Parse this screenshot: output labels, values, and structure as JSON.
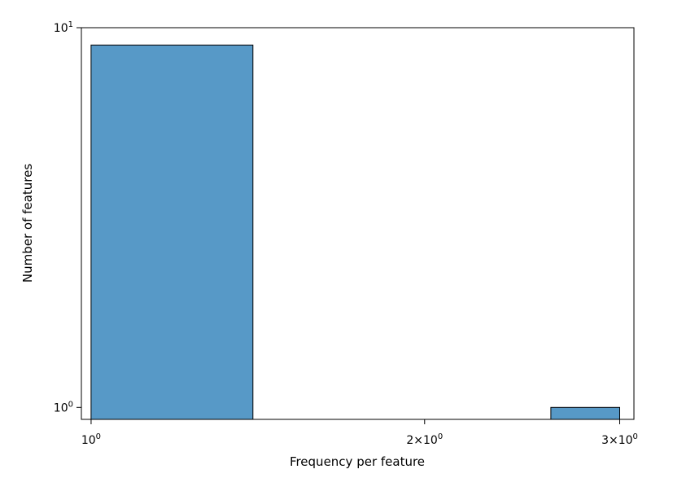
{
  "chart_data": {
    "type": "bar",
    "title": "",
    "xlabel": "Frequency per feature",
    "ylabel": "Number of features",
    "x_scale": "log",
    "y_scale": "log",
    "xlim": [
      0.98,
      3.09
    ],
    "ylim": [
      0.93,
      10
    ],
    "grid": false,
    "bars": [
      {
        "x_start": 1.0,
        "x_end": 1.4,
        "value": 9
      },
      {
        "x_start": 2.6,
        "x_end": 3.0,
        "value": 1
      }
    ],
    "bar_color": "#5799c7",
    "bar_edge_color": "#000000",
    "x_ticks": [
      {
        "value": 1,
        "base": "10",
        "exp": "0"
      },
      {
        "value": 2,
        "base": "2×10",
        "exp": "0"
      },
      {
        "value": 3,
        "base": "3×10",
        "exp": "0"
      }
    ],
    "y_ticks": [
      {
        "value": 1,
        "base": "10",
        "exp": "0"
      },
      {
        "value": 10,
        "base": "10",
        "exp": "1"
      }
    ]
  }
}
